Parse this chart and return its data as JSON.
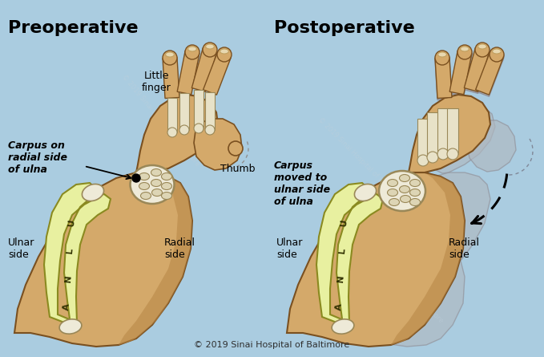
{
  "bg_color": "#aacce0",
  "skin_color": "#d4a96a",
  "skin_dark": "#b88848",
  "bone_color": "#e8e2c8",
  "ulna_color": "#e8f0a0",
  "carpal_outer": "#e0dcc8",
  "carpal_inner": "#d0c8a8",
  "shadow_color": "#b0b8c0",
  "shadow_ec": "#909098",
  "title_left": "Preoperative",
  "title_right": "Postoperative",
  "label_little": "Little\nfinger",
  "label_thumb": "Thumb",
  "label_carpus_pre": "Carpus on\nradial side\nof ulna",
  "label_carpus_post": "Carpus\nmoved to\nulnar side\nof ulna",
  "label_ulnar_left": "Ulnar\nside",
  "label_radial_left": "Radial\nside",
  "label_ulnar_right": "Ulnar\nside",
  "label_radial_right": "Radial\nside",
  "copyright": "© 2019 Sinai Hospital of Baltimore"
}
